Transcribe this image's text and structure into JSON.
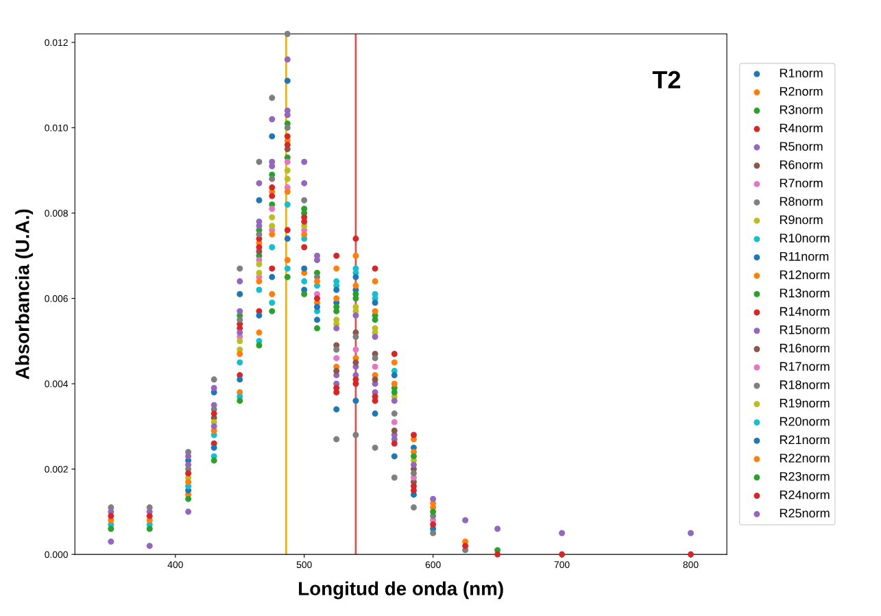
{
  "chart_data": {
    "type": "scatter",
    "xlabel": "Longitud de onda (nm)",
    "ylabel": "Absorbancia (U.A.)",
    "annotations": [
      "T2"
    ],
    "xlim": [
      322,
      828
    ],
    "xticks": [
      400,
      500,
      600,
      700,
      800
    ],
    "ylim": [
      0,
      0.0122
    ],
    "yticks": [
      {
        "value": 0,
        "label": "0.000"
      },
      {
        "value": 0.002,
        "label": "0.002"
      },
      {
        "value": 0.004,
        "label": "0.004"
      },
      {
        "value": 0.006,
        "label": "0.006"
      },
      {
        "value": 0.008,
        "label": "0.008"
      },
      {
        "value": 0.01,
        "label": "0.010"
      },
      {
        "value": 0.012,
        "label": "0.012"
      }
    ],
    "grid": false,
    "legend": "right",
    "marker": "circle",
    "ref_lines": [
      {
        "axis": "x",
        "value": 486,
        "color": "#e8b030"
      },
      {
        "axis": "x",
        "value": 540,
        "color": "#d9534f"
      }
    ],
    "x": [
      350,
      380,
      410,
      430,
      450,
      465,
      475,
      487,
      500,
      510,
      525,
      540,
      555,
      570,
      585,
      600,
      625,
      650,
      700,
      800
    ],
    "series": [
      {
        "name": "R1norm",
        "color": "#1f77b4",
        "values": [
          null,
          null,
          0.0022,
          0.0038,
          0.0061,
          0.0083,
          0.0098,
          0.0111,
          null,
          null,
          0.0034,
          0.0036,
          0.0033,
          0.0023,
          0.0014,
          0.0006,
          null,
          null,
          null,
          null
        ]
      },
      {
        "name": "R2norm",
        "color": "#ff7f0e",
        "values": [
          null,
          null,
          0.0014,
          null,
          0.0038,
          0.0052,
          0.0061,
          0.0069,
          0.0066,
          0.0059,
          0.0067,
          0.007,
          0.0064,
          0.0045,
          0.0027,
          0.0012,
          null,
          null,
          null,
          null
        ]
      },
      {
        "name": "R3norm",
        "color": "#2ca02c",
        "values": [
          null,
          null,
          null,
          null,
          0.0056,
          0.0076,
          0.0089,
          0.0101,
          0.0081,
          null,
          null,
          null,
          null,
          null,
          null,
          null,
          null,
          null,
          null,
          null
        ]
      },
      {
        "name": "R4norm",
        "color": "#d62728",
        "values": [
          null,
          null,
          null,
          0.0026,
          0.0042,
          0.0057,
          0.0067,
          0.0076,
          0.0072,
          null,
          0.007,
          0.0074,
          0.0067,
          0.0047,
          0.0028,
          null,
          null,
          null,
          null,
          null
        ]
      },
      {
        "name": "R5norm",
        "color": "#9467bd",
        "values": [
          null,
          null,
          0.0021,
          0.0035,
          0.0057,
          0.0077,
          0.0091,
          0.0103,
          null,
          null,
          0.004,
          0.0042,
          0.0038,
          0.0027,
          null,
          null,
          null,
          null,
          null,
          null
        ]
      },
      {
        "name": "R6norm",
        "color": "#8c564b",
        "values": [
          null,
          null,
          null,
          null,
          null,
          null,
          null,
          null,
          null,
          null,
          0.0049,
          0.0052,
          0.0047,
          null,
          0.002,
          null,
          null,
          null,
          null,
          null
        ]
      },
      {
        "name": "R7norm",
        "color": "#e377c2",
        "values": [
          null,
          null,
          null,
          null,
          null,
          0.0065,
          0.0076,
          0.0086,
          null,
          null,
          null,
          null,
          null,
          null,
          null,
          null,
          null,
          null,
          null,
          null
        ]
      },
      {
        "name": "R8norm",
        "color": "#7f7f7f",
        "values": [
          0.0011,
          0.0011,
          0.0024,
          0.0041,
          0.0067,
          0.0092,
          0.0107,
          0.0122,
          null,
          null,
          0.0027,
          0.0028,
          0.0025,
          0.0018,
          0.0011,
          0.0005,
          0.0001,
          null,
          null,
          null
        ]
      },
      {
        "name": "R9norm",
        "color": "#bcbd22",
        "values": [
          null,
          null,
          null,
          null,
          0.0048,
          0.0066,
          0.0077,
          0.0088,
          null,
          null,
          0.0055,
          0.0058,
          0.0053,
          0.0037,
          null,
          null,
          null,
          null,
          null,
          null
        ]
      },
      {
        "name": "R10norm",
        "color": "#17becf",
        "values": [
          null,
          null,
          null,
          0.0023,
          0.0037,
          0.005,
          0.0059,
          0.0067,
          0.0064,
          0.0057,
          0.0064,
          0.0067,
          0.0061,
          0.0043,
          null,
          null,
          null,
          null,
          null,
          null
        ]
      },
      {
        "name": "R11norm",
        "color": "#1f77b4",
        "values": [
          null,
          null,
          0.0015,
          0.0025,
          0.0041,
          0.0056,
          0.0065,
          0.0074,
          0.0067,
          0.0058,
          0.0059,
          0.0062,
          null,
          null,
          null,
          null,
          null,
          null,
          null,
          null
        ]
      },
      {
        "name": "R12norm",
        "color": "#ff7f0e",
        "values": [
          null,
          null,
          null,
          null,
          null,
          0.0073,
          0.0085,
          0.0097,
          null,
          null,
          0.0044,
          0.0046,
          0.0042,
          null,
          null,
          null,
          null,
          null,
          null,
          null
        ]
      },
      {
        "name": "R13norm",
        "color": "#2ca02c",
        "values": [
          null,
          null,
          null,
          null,
          null,
          0.007,
          0.0082,
          0.0093,
          0.008,
          0.0066,
          0.0058,
          0.0061,
          0.0056,
          0.0039,
          null,
          null,
          null,
          null,
          null,
          null
        ]
      },
      {
        "name": "R14norm",
        "color": "#d62728",
        "values": [
          null,
          null,
          null,
          null,
          0.0054,
          0.0074,
          0.0086,
          0.0098,
          0.0079,
          null,
          0.0038,
          0.004,
          0.0036,
          null,
          0.0015,
          null,
          null,
          null,
          null,
          null
        ]
      },
      {
        "name": "R15norm",
        "color": "#9467bd",
        "values": [
          0.001,
          0.001,
          0.0023,
          0.0039,
          0.0064,
          0.0087,
          0.0102,
          0.0116,
          0.0092,
          0.007,
          0.0042,
          0.0044,
          0.004,
          0.0028,
          null,
          null,
          null,
          null,
          null,
          null
        ]
      },
      {
        "name": "R16norm",
        "color": "#8c564b",
        "values": [
          null,
          null,
          null,
          0.0032,
          null,
          0.0071,
          null,
          0.0095,
          null,
          null,
          0.0043,
          0.0045,
          0.0041,
          0.0029,
          0.0017,
          null,
          null,
          null,
          null,
          null
        ]
      },
      {
        "name": "R17norm",
        "color": "#e377c2",
        "values": [
          null,
          null,
          null,
          null,
          0.0051,
          0.0069,
          0.0081,
          0.0092,
          0.0076,
          0.0061,
          0.0046,
          0.0048,
          0.0044,
          0.0031,
          0.0018,
          0.0008,
          null,
          null,
          null,
          null
        ]
      },
      {
        "name": "R18norm",
        "color": "#7f7f7f",
        "values": [
          null,
          null,
          0.002,
          0.0034,
          0.0055,
          0.0075,
          0.0088,
          0.01,
          0.0083,
          0.0065,
          0.0048,
          0.0051,
          0.0046,
          0.0033,
          0.0019,
          0.0009,
          null,
          null,
          null,
          null
        ]
      },
      {
        "name": "R19norm",
        "color": "#bcbd22",
        "values": [
          null,
          null,
          0.0018,
          0.0031,
          0.005,
          0.0068,
          0.0079,
          0.009,
          0.0077,
          null,
          0.0054,
          0.0057,
          0.0052,
          null,
          0.0022,
          null,
          null,
          null,
          null,
          null
        ]
      },
      {
        "name": "R20norm",
        "color": "#17becf",
        "values": [
          0.0007,
          0.0007,
          0.0016,
          0.0028,
          0.0045,
          0.0062,
          0.0072,
          0.0082,
          0.0074,
          0.0063,
          0.0063,
          0.0066,
          0.006,
          null,
          null,
          null,
          null,
          null,
          null,
          null
        ]
      },
      {
        "name": "R21norm",
        "color": "#1f77b4",
        "values": [
          null,
          null,
          null,
          null,
          null,
          null,
          null,
          null,
          0.0062,
          0.0055,
          0.0062,
          0.0065,
          0.0059,
          0.0042,
          0.0025,
          null,
          null,
          null,
          null,
          null
        ]
      },
      {
        "name": "R22norm",
        "color": "#ff7f0e",
        "values": [
          0.0008,
          0.0008,
          0.0017,
          0.0029,
          0.0047,
          0.0064,
          0.0075,
          0.0085,
          0.0075,
          0.0064,
          0.006,
          0.0063,
          0.0057,
          0.004,
          0.0024,
          0.0011,
          0.0003,
          null,
          null,
          null
        ]
      },
      {
        "name": "R23norm",
        "color": "#2ca02c",
        "values": [
          0.0006,
          0.0006,
          0.0013,
          0.0022,
          0.0036,
          0.0049,
          0.0057,
          0.0065,
          0.0061,
          0.0053,
          0.0057,
          0.006,
          0.0055,
          0.0038,
          0.0023,
          0.001,
          null,
          0.0001,
          null,
          null
        ]
      },
      {
        "name": "R24norm",
        "color": "#d62728",
        "values": [
          0.0009,
          0.0009,
          0.0019,
          0.0033,
          0.0053,
          0.0072,
          0.0084,
          0.0096,
          0.0078,
          0.006,
          0.0039,
          0.0041,
          0.0037,
          0.0026,
          0.0016,
          0.0007,
          0.0002,
          0,
          0,
          0
        ]
      },
      {
        "name": "R25norm",
        "color": "#9467bd",
        "values": [
          0.0003,
          0.0002,
          0.001,
          0.003,
          0.0052,
          0.0078,
          0.0092,
          0.0104,
          0.0087,
          0.0069,
          0.0053,
          0.0056,
          0.0051,
          0.0036,
          0.0021,
          0.0013,
          0.0008,
          0.0006,
          0.0005,
          0.0005
        ]
      }
    ]
  }
}
